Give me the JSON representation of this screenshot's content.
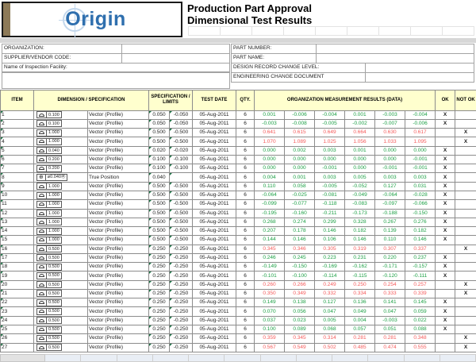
{
  "logo": {
    "text": "Origin"
  },
  "title": {
    "line1": "Production Part Approval",
    "line2": "Dimensional Test Results"
  },
  "form": {
    "left": [
      {
        "label": "ORGANIZATION:",
        "value": ""
      },
      {
        "label": "SUPPLIER/VENDOR CODE:",
        "value": ""
      },
      {
        "label": "Name of Inspection Facility:",
        "value": ""
      }
    ],
    "right": [
      {
        "label": "PART NUMBER:",
        "value": ""
      },
      {
        "label": "PART NAME:",
        "value": ""
      },
      {
        "label": "DESIGN RECORD CHANGE LEVEL:",
        "value": ""
      },
      {
        "label": "ENGINEERING CHANGE DOCUMENT",
        "value": ""
      }
    ]
  },
  "table": {
    "headers": {
      "item": "ITEM",
      "dimension": "DIMENSION / SPECIFICATION",
      "limits": "SPECIFICATION / LIMITS",
      "date": "TEST DATE",
      "qty": "QTY.",
      "results": "ORGANIZATION MEASUREMENT RESULTS (DATA)",
      "ok": "OK",
      "notok": "NOT OK"
    },
    "test_date": "05-Aug-2011",
    "qty": "6",
    "symbols": {
      "profile": "profile-of-surface",
      "position": "true-position"
    },
    "rows": [
      {
        "i": "1",
        "t": "p",
        "sv": "0.100",
        "n": "Vector (Profile)",
        "hi": "0.050",
        "lo": "-0.050",
        "v": [
          "0.001",
          "-0.006",
          "-0.004",
          "0.001",
          "-0.003",
          "-0.004"
        ],
        "s": "ok"
      },
      {
        "i": "2",
        "t": "p",
        "sv": "0.100",
        "n": "Vector (Profile)",
        "hi": "0.050",
        "lo": "-0.050",
        "v": [
          "-0.003",
          "-0.008",
          "-0.005",
          "-0.002",
          "-0.007",
          "-0.006"
        ],
        "s": "ok"
      },
      {
        "i": "3",
        "t": "p",
        "sv": "1.000",
        "n": "Vector (Profile)",
        "hi": "0.500",
        "lo": "-0.500",
        "v": [
          "0.641",
          "0.615",
          "0.649",
          "0.664",
          "0.630",
          "0.617"
        ],
        "s": "ng"
      },
      {
        "i": "4",
        "t": "p",
        "sv": "1.000",
        "n": "Vector (Profile)",
        "hi": "0.500",
        "lo": "-0.500",
        "v": [
          "1.070",
          "1.089",
          "1.025",
          "1.056",
          "1.033",
          "1.095"
        ],
        "s": "ng"
      },
      {
        "i": "5",
        "t": "p",
        "sv": "0.040",
        "n": "Vector (Profile)",
        "hi": "0.020",
        "lo": "-0.020",
        "v": [
          "0.000",
          "0.002",
          "0.003",
          "0.001",
          "0.000",
          "0.000"
        ],
        "s": "ok"
      },
      {
        "i": "6",
        "t": "p",
        "sv": "0.200",
        "n": "Vector (Profile)",
        "hi": "0.100",
        "lo": "-0.100",
        "v": [
          "0.000",
          "0.000",
          "0.000",
          "0.000",
          "0.000",
          "-0.001"
        ],
        "s": "ok"
      },
      {
        "i": "7",
        "t": "p",
        "sv": "0.200",
        "n": "Vector (Profile)",
        "hi": "0.100",
        "lo": "-0.100",
        "v": [
          "0.000",
          "0.000",
          "-0.001",
          "0.000",
          "-0.001",
          "-0.001"
        ],
        "s": "ok"
      },
      {
        "i": "8",
        "t": "t",
        "sv": "⌀0.040Ⓜ",
        "n": "True Position",
        "hi": "0.040",
        "lo": "",
        "v": [
          "0.004",
          "0.001",
          "0.003",
          "0.005",
          "0.003",
          "0.003"
        ],
        "s": "ok"
      },
      {
        "i": "9",
        "t": "p",
        "sv": "1.000",
        "n": "Vector (Profile)",
        "hi": "0.500",
        "lo": "-0.500",
        "v": [
          "0.110",
          "0.058",
          "-0.005",
          "-0.052",
          "0.127",
          "0.031"
        ],
        "s": "ok"
      },
      {
        "i": "10",
        "t": "p",
        "sv": "1.000",
        "n": "Vector (Profile)",
        "hi": "0.500",
        "lo": "-0.500",
        "v": [
          "-0.064",
          "-0.025",
          "-0.081",
          "-0.049",
          "-0.064",
          "-0.028"
        ],
        "s": "ok"
      },
      {
        "i": "11",
        "t": "p",
        "sv": "1.000",
        "n": "Vector (Profile)",
        "hi": "0.500",
        "lo": "-0.500",
        "v": [
          "-0.099",
          "-0.077",
          "-0.118",
          "-0.083",
          "-0.097",
          "-0.066"
        ],
        "s": "ok"
      },
      {
        "i": "12",
        "t": "p",
        "sv": "1.000",
        "n": "Vector (Profile)",
        "hi": "0.500",
        "lo": "-0.500",
        "v": [
          "-0.195",
          "-0.160",
          "-0.211",
          "-0.173",
          "-0.188",
          "-0.150"
        ],
        "s": "ok"
      },
      {
        "i": "13",
        "t": "p",
        "sv": "1.000",
        "n": "Vector (Profile)",
        "hi": "0.500",
        "lo": "-0.500",
        "v": [
          "0.268",
          "0.274",
          "0.299",
          "0.328",
          "0.267",
          "0.276"
        ],
        "s": "ok"
      },
      {
        "i": "14",
        "t": "p",
        "sv": "1.000",
        "n": "Vector (Profile)",
        "hi": "0.500",
        "lo": "-0.500",
        "v": [
          "0.207",
          "0.178",
          "0.146",
          "0.182",
          "0.139",
          "0.182"
        ],
        "s": "ok"
      },
      {
        "i": "15",
        "t": "p",
        "sv": "1.000",
        "n": "Vector (Profile)",
        "hi": "0.500",
        "lo": "-0.500",
        "v": [
          "0.144",
          "0.146",
          "0.106",
          "0.146",
          "0.110",
          "0.146"
        ],
        "s": "ok"
      },
      {
        "i": "16",
        "t": "p",
        "sv": "0.500",
        "n": "Vector (Profile)",
        "hi": "0.250",
        "lo": "-0.250",
        "v": [
          "0.345",
          "0.346",
          "0.305",
          "0.319",
          "0.307",
          "0.337"
        ],
        "s": "ng"
      },
      {
        "i": "17",
        "t": "p",
        "sv": "0.500",
        "n": "Vector (Profile)",
        "hi": "0.250",
        "lo": "-0.250",
        "v": [
          "0.246",
          "0.245",
          "0.223",
          "0.231",
          "0.220",
          "0.237"
        ],
        "s": "ok"
      },
      {
        "i": "18",
        "t": "p",
        "sv": "0.500",
        "n": "Vector (Profile)",
        "hi": "0.250",
        "lo": "-0.250",
        "v": [
          "-0.149",
          "-0.150",
          "-0.169",
          "-0.162",
          "-0.171",
          "-0.157"
        ],
        "s": "ok"
      },
      {
        "i": "19",
        "t": "p",
        "sv": "0.500",
        "n": "Vector (Profile)",
        "hi": "0.250",
        "lo": "-0.250",
        "v": [
          "-0.101",
          "-0.100",
          "-0.114",
          "-0.115",
          "-0.120",
          "-0.111"
        ],
        "s": "ok"
      },
      {
        "i": "20",
        "t": "p",
        "sv": "0.500",
        "n": "Vector (Profile)",
        "hi": "0.250",
        "lo": "-0.250",
        "v": [
          "0.260",
          "0.266",
          "0.249",
          "0.250",
          "0.254",
          "0.257"
        ],
        "s": "ng"
      },
      {
        "i": "21",
        "t": "p",
        "sv": "0.500",
        "n": "Vector (Profile)",
        "hi": "0.250",
        "lo": "-0.250",
        "v": [
          "0.350",
          "0.349",
          "0.332",
          "0.334",
          "0.333",
          "0.339"
        ],
        "s": "ng"
      },
      {
        "i": "22",
        "t": "p",
        "sv": "0.500",
        "n": "Vector (Profile)",
        "hi": "0.250",
        "lo": "-0.250",
        "v": [
          "0.149",
          "0.138",
          "0.127",
          "0.136",
          "0.141",
          "0.145"
        ],
        "s": "ok"
      },
      {
        "i": "23",
        "t": "p",
        "sv": "0.500",
        "n": "Vector (Profile)",
        "hi": "0.250",
        "lo": "-0.250",
        "v": [
          "0.070",
          "0.056",
          "0.047",
          "0.049",
          "0.047",
          "0.059"
        ],
        "s": "ok"
      },
      {
        "i": "24",
        "t": "p",
        "sv": "0.500",
        "n": "Vector (Profile)",
        "hi": "0.250",
        "lo": "-0.250",
        "v": [
          "0.037",
          "0.023",
          "0.005",
          "0.004",
          "-0.003",
          "0.022"
        ],
        "s": "ok"
      },
      {
        "i": "25",
        "t": "p",
        "sv": "0.500",
        "n": "Vector (Profile)",
        "hi": "0.250",
        "lo": "-0.250",
        "v": [
          "0.100",
          "0.089",
          "0.068",
          "0.057",
          "0.051",
          "0.088"
        ],
        "s": "ok"
      },
      {
        "i": "26",
        "t": "p",
        "sv": "0.500",
        "n": "Vector (Profile)",
        "hi": "0.250",
        "lo": "-0.250",
        "v": [
          "0.359",
          "0.345",
          "0.314",
          "0.281",
          "0.281",
          "0.348"
        ],
        "s": "ng"
      },
      {
        "i": "27",
        "t": "p",
        "sv": "0.500",
        "n": "Vector (Profile)",
        "hi": "0.250",
        "lo": "-0.250",
        "v": [
          "0.567",
          "0.549",
          "0.502",
          "0.485",
          "0.474",
          "0.555"
        ],
        "s": "ng"
      }
    ]
  },
  "colors": {
    "ok_green": "#1ca045",
    "notok_red": "#f55a5a",
    "header_bg": "#ffffce",
    "logo_blue": "#2f6fae",
    "logo_strip_tan": "#8d7a58"
  }
}
